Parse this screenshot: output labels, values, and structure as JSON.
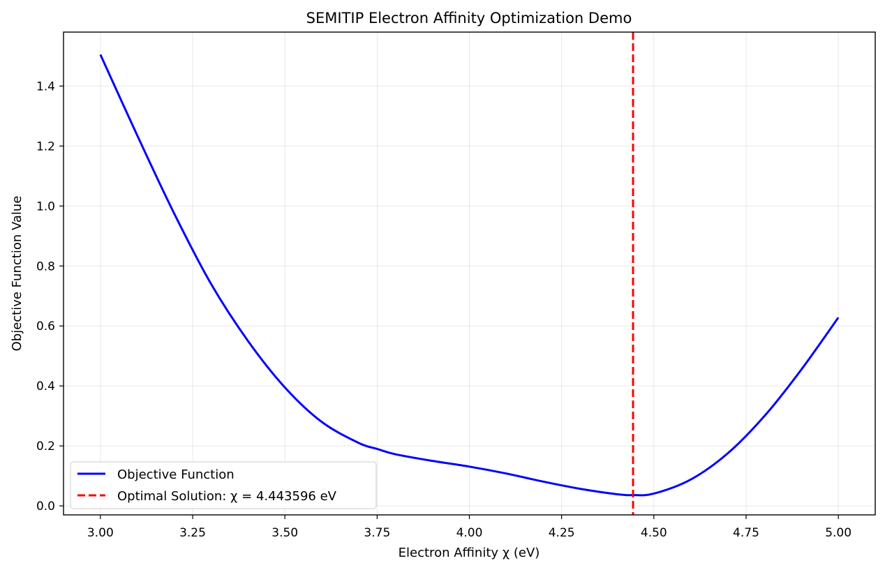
{
  "chart_data": {
    "type": "line",
    "title": "SEMITIP Electron Affinity Optimization Demo",
    "xlabel": "Electron Affinity χ (eV)",
    "ylabel": "Objective Function Value",
    "xlim": [
      2.9,
      5.1
    ],
    "ylim": [
      -0.03,
      1.58
    ],
    "xticks": [
      3.0,
      3.25,
      3.5,
      3.75,
      4.0,
      4.25,
      4.5,
      4.75,
      5.0
    ],
    "xtick_labels": [
      "3.00",
      "3.25",
      "3.50",
      "3.75",
      "4.00",
      "4.25",
      "4.50",
      "4.75",
      "5.00"
    ],
    "yticks": [
      0.0,
      0.2,
      0.4,
      0.6,
      0.8,
      1.0,
      1.2,
      1.4
    ],
    "ytick_labels": [
      "0.0",
      "0.2",
      "0.4",
      "0.6",
      "0.8",
      "1.0",
      "1.2",
      "1.4"
    ],
    "grid": true,
    "legend_position": "lower-left",
    "series": [
      {
        "name": "Objective Function",
        "color": "#0000ff",
        "style": "solid",
        "x": [
          3.0,
          3.1,
          3.2,
          3.3,
          3.4,
          3.5,
          3.6,
          3.7,
          3.75,
          3.8,
          3.9,
          4.0,
          4.1,
          4.2,
          4.3,
          4.4,
          4.444,
          4.5,
          4.6,
          4.7,
          4.8,
          4.9,
          5.0
        ],
        "y": [
          1.505,
          1.235,
          0.975,
          0.74,
          0.55,
          0.395,
          0.28,
          0.21,
          0.19,
          0.172,
          0.15,
          0.131,
          0.108,
          0.081,
          0.057,
          0.039,
          0.036,
          0.041,
          0.088,
          0.175,
          0.3,
          0.455,
          0.628
        ]
      }
    ],
    "vlines": [
      {
        "name": "Optimal Solution: χ = 4.443596 eV",
        "x": 4.443596,
        "color": "#ff0000",
        "style": "dashed"
      }
    ]
  }
}
